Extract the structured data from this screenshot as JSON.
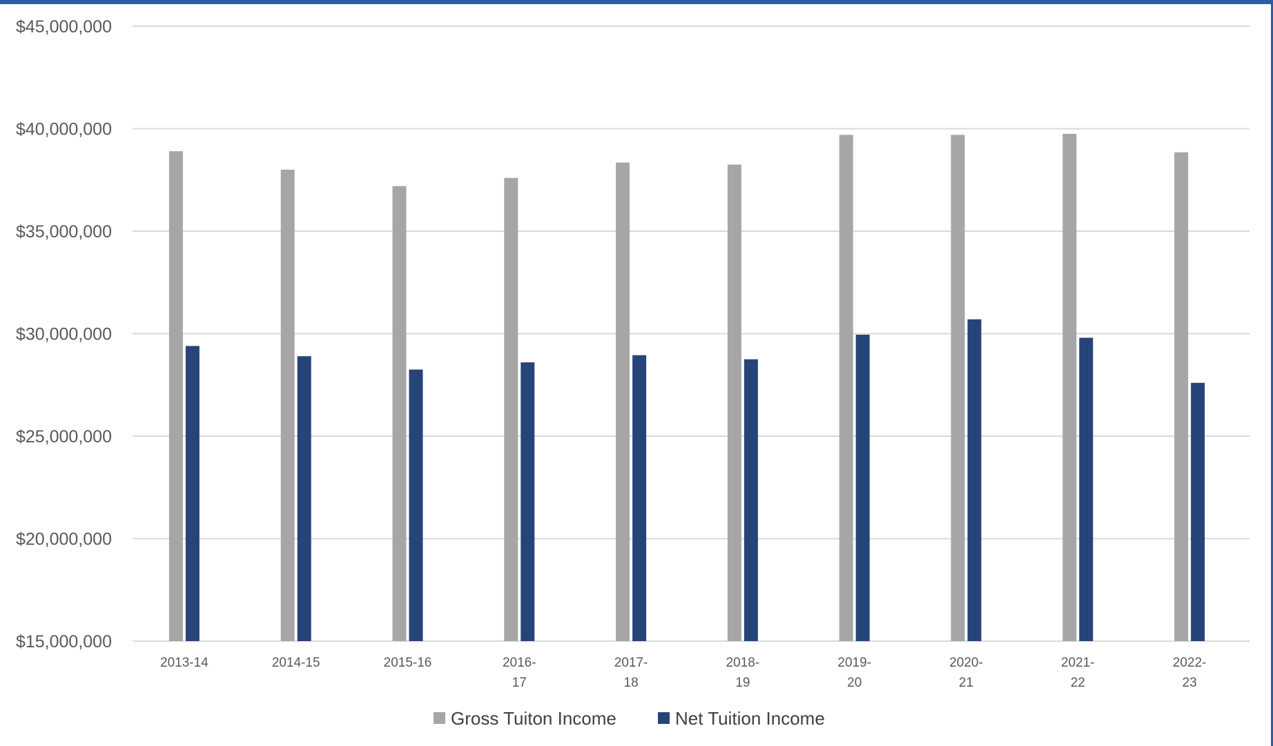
{
  "chart_data": {
    "type": "bar",
    "title": "",
    "xlabel": "",
    "ylabel": "",
    "ylim": [
      15000000,
      45000000
    ],
    "yticks": [
      15000000,
      20000000,
      25000000,
      30000000,
      35000000,
      40000000,
      45000000
    ],
    "ytick_labels": [
      "$15,000,000",
      "$20,000,000",
      "$25,000,000",
      "$30,000,000",
      "$35,000,000",
      "$40,000,000",
      "$45,000,000"
    ],
    "grid": true,
    "legend_position": "bottom",
    "categories": [
      [
        "2013-14"
      ],
      [
        "2014-15"
      ],
      [
        "2015-16"
      ],
      [
        "2016-",
        "17"
      ],
      [
        "2017-",
        "18"
      ],
      [
        "2018-",
        "19"
      ],
      [
        "2019-",
        "20"
      ],
      [
        "2020-",
        "21"
      ],
      [
        "2021-",
        "22"
      ],
      [
        "2022-",
        "23"
      ]
    ],
    "series": [
      {
        "name": "Gross Tuiton Income",
        "color": "#a6a6a6",
        "values": [
          38900000,
          38000000,
          37200000,
          37600000,
          38350000,
          38250000,
          39700000,
          39700000,
          39750000,
          38850000
        ]
      },
      {
        "name": "Net Tuition Income",
        "color": "#264478",
        "values": [
          29400000,
          28900000,
          28250000,
          28600000,
          28950000,
          28750000,
          29950000,
          30700000,
          29800000,
          27600000
        ]
      }
    ]
  }
}
